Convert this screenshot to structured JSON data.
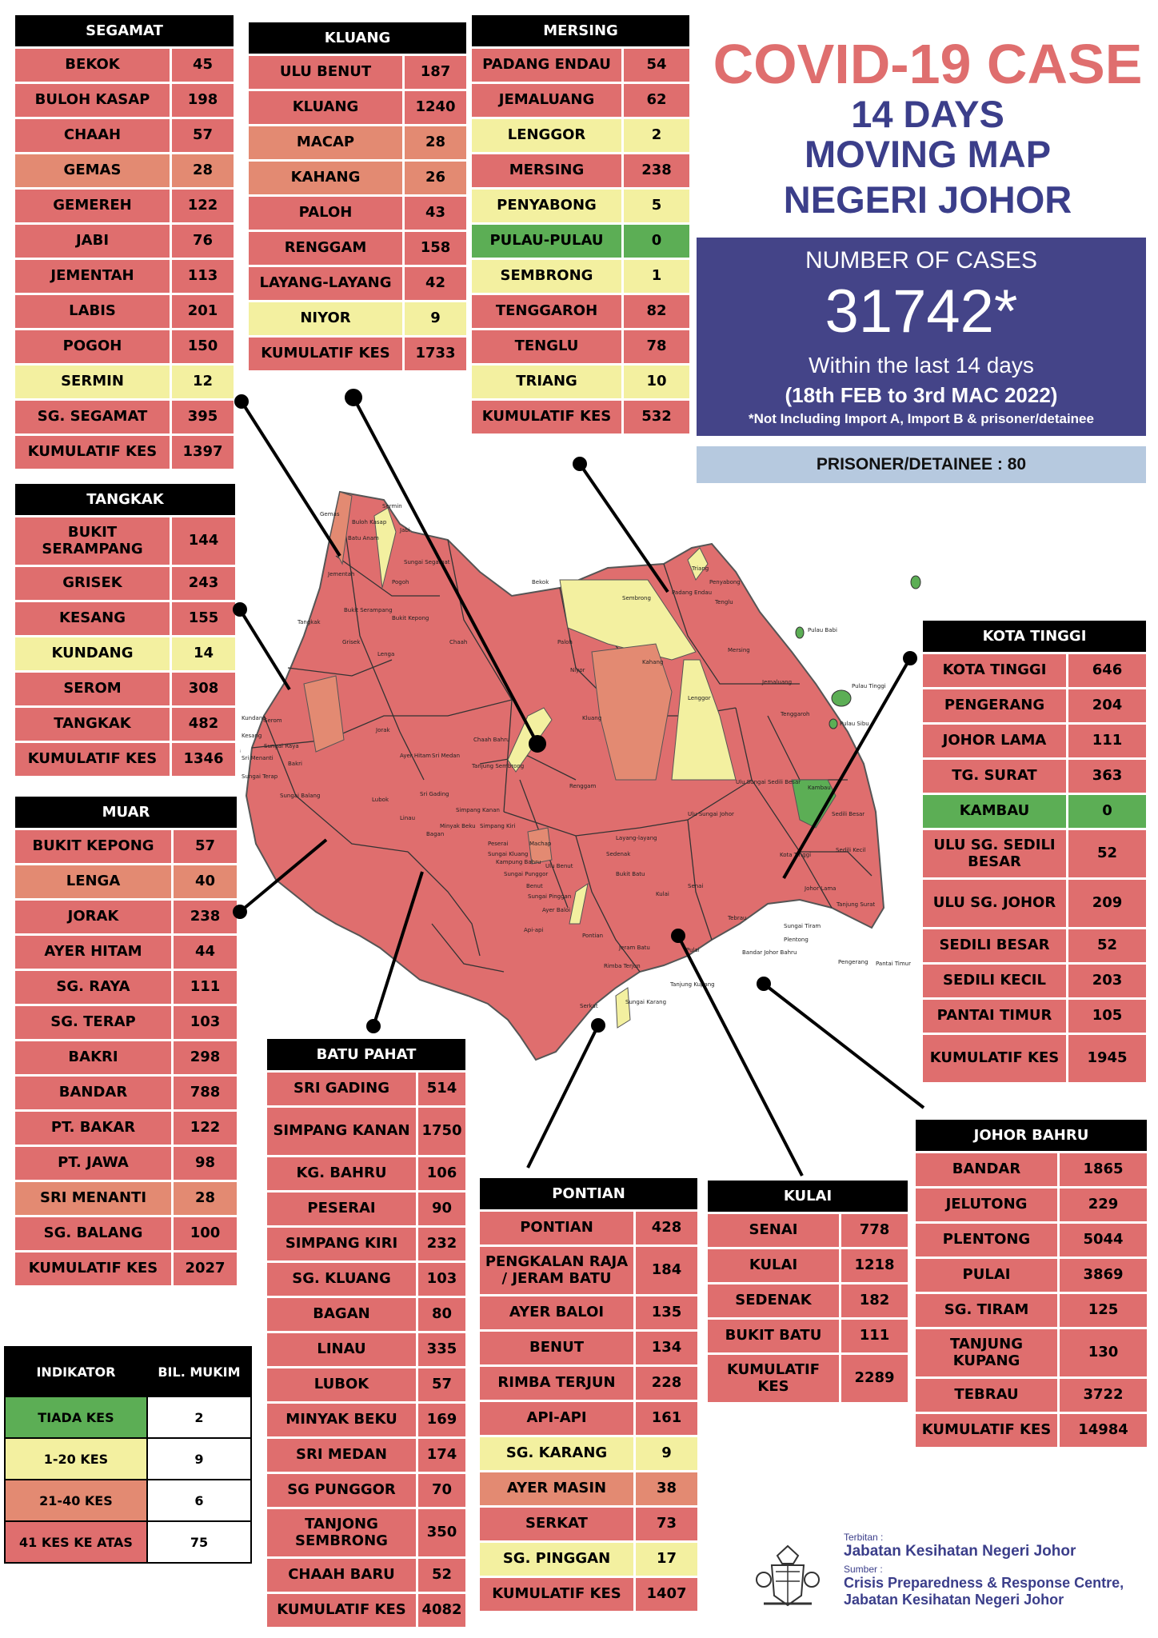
{
  "title": {
    "line1": "COVID-19 CASE",
    "line2": "14 DAYS",
    "line3": "MOVING MAP",
    "line4": "NEGERI JOHOR"
  },
  "summary": {
    "label": "NUMBER OF CASES",
    "total": "31742*",
    "period_prefix": "Within the last 14 days",
    "date_range": "(18th FEB to 3rd MAC 2022)",
    "note": "*Not Including Import A, Import B & prisoner/detainee",
    "prisoner": "PRISONER/DETAINEE : 80"
  },
  "colors": {
    "red": "#df6e6e",
    "orange": "#e38a72",
    "yellow": "#f3f0a0",
    "green": "#5cae55",
    "navy": "#444488"
  },
  "districts": [
    {
      "id": "segamat",
      "name": "SEGAMAT",
      "rows": [
        {
          "name": "BEKOK",
          "value": "45",
          "level": "red"
        },
        {
          "name": "BULOH KASAP",
          "value": "198",
          "level": "red"
        },
        {
          "name": "CHAAH",
          "value": "57",
          "level": "red"
        },
        {
          "name": "GEMAS",
          "value": "28",
          "level": "orange"
        },
        {
          "name": "GEMEREH",
          "value": "122",
          "level": "red"
        },
        {
          "name": "JABI",
          "value": "76",
          "level": "red"
        },
        {
          "name": "JEMENTAH",
          "value": "113",
          "level": "red"
        },
        {
          "name": "LABIS",
          "value": "201",
          "level": "red"
        },
        {
          "name": "POGOH",
          "value": "150",
          "level": "red"
        },
        {
          "name": "SERMIN",
          "value": "12",
          "level": "yellow"
        },
        {
          "name": "SG. SEGAMAT",
          "value": "395",
          "level": "red"
        }
      ],
      "total": {
        "name": "KUMULATIF KES",
        "value": "1397"
      }
    },
    {
      "id": "kluang",
      "name": "KLUANG",
      "rows": [
        {
          "name": "ULU BENUT",
          "value": "187",
          "level": "red"
        },
        {
          "name": "KLUANG",
          "value": "1240",
          "level": "red"
        },
        {
          "name": "MACAP",
          "value": "28",
          "level": "orange"
        },
        {
          "name": "KAHANG",
          "value": "26",
          "level": "orange"
        },
        {
          "name": "PALOH",
          "value": "43",
          "level": "red"
        },
        {
          "name": "RENGGAM",
          "value": "158",
          "level": "red"
        },
        {
          "name": "LAYANG-LAYANG",
          "value": "42",
          "level": "red"
        },
        {
          "name": "NIYOR",
          "value": "9",
          "level": "yellow"
        }
      ],
      "total": {
        "name": "KUMULATIF KES",
        "value": "1733"
      }
    },
    {
      "id": "mersing",
      "name": "MERSING",
      "rows": [
        {
          "name": "PADANG ENDAU",
          "value": "54",
          "level": "red"
        },
        {
          "name": "JEMALUANG",
          "value": "62",
          "level": "red"
        },
        {
          "name": "LENGGOR",
          "value": "2",
          "level": "yellow"
        },
        {
          "name": "MERSING",
          "value": "238",
          "level": "red"
        },
        {
          "name": "PENYABONG",
          "value": "5",
          "level": "yellow"
        },
        {
          "name": "PULAU-PULAU",
          "value": "0",
          "level": "green"
        },
        {
          "name": "SEMBRONG",
          "value": "1",
          "level": "yellow"
        },
        {
          "name": "TENGGAROH",
          "value": "82",
          "level": "red"
        },
        {
          "name": "TENGLU",
          "value": "78",
          "level": "red"
        },
        {
          "name": "TRIANG",
          "value": "10",
          "level": "yellow"
        }
      ],
      "total": {
        "name": "KUMULATIF KES",
        "value": "532"
      }
    },
    {
      "id": "tangkak",
      "name": "TANGKAK",
      "rows": [
        {
          "name": "BUKIT SERAMPANG",
          "value": "144",
          "level": "red",
          "tall": true
        },
        {
          "name": "GRISEK",
          "value": "243",
          "level": "red"
        },
        {
          "name": "KESANG",
          "value": "155",
          "level": "red"
        },
        {
          "name": "KUNDANG",
          "value": "14",
          "level": "yellow"
        },
        {
          "name": "SEROM",
          "value": "308",
          "level": "red"
        },
        {
          "name": "TANGKAK",
          "value": "482",
          "level": "red"
        }
      ],
      "total": {
        "name": "KUMULATIF KES",
        "value": "1346"
      }
    },
    {
      "id": "muar",
      "name": "MUAR",
      "rows": [
        {
          "name": "BUKIT KEPONG",
          "value": "57",
          "level": "red"
        },
        {
          "name": "LENGA",
          "value": "40",
          "level": "orange"
        },
        {
          "name": "JORAK",
          "value": "238",
          "level": "red"
        },
        {
          "name": "AYER HITAM",
          "value": "44",
          "level": "red"
        },
        {
          "name": "SG. RAYA",
          "value": "111",
          "level": "red"
        },
        {
          "name": "SG. TERAP",
          "value": "103",
          "level": "red"
        },
        {
          "name": "BAKRI",
          "value": "298",
          "level": "red"
        },
        {
          "name": "BANDAR",
          "value": "788",
          "level": "red"
        },
        {
          "name": "PT. BAKAR",
          "value": "122",
          "level": "red"
        },
        {
          "name": "PT. JAWA",
          "value": "98",
          "level": "red"
        },
        {
          "name": "SRI MENANTI",
          "value": "28",
          "level": "orange"
        },
        {
          "name": "SG. BALANG",
          "value": "100",
          "level": "red"
        }
      ],
      "total": {
        "name": "KUMULATIF KES",
        "value": "2027"
      }
    },
    {
      "id": "kota_tinggi",
      "name": "KOTA TINGGI",
      "rows": [
        {
          "name": "KOTA TINGGI",
          "value": "646",
          "level": "red"
        },
        {
          "name": "PENGERANG",
          "value": "204",
          "level": "red"
        },
        {
          "name": "JOHOR LAMA",
          "value": "111",
          "level": "red"
        },
        {
          "name": "TG. SURAT",
          "value": "363",
          "level": "red"
        },
        {
          "name": "KAMBAU",
          "value": "0",
          "level": "green"
        },
        {
          "name": "ULU SG. SEDILI BESAR",
          "value": "52",
          "level": "red",
          "tall": true
        },
        {
          "name": "ULU SG. JOHOR",
          "value": "209",
          "level": "red",
          "tall": true
        },
        {
          "name": "SEDILI BESAR",
          "value": "52",
          "level": "red"
        },
        {
          "name": "SEDILI KECIL",
          "value": "203",
          "level": "red"
        },
        {
          "name": "PANTAI TIMUR",
          "value": "105",
          "level": "red"
        }
      ],
      "total": {
        "name": "KUMULATIF KES",
        "value": "1945",
        "tall": true
      }
    },
    {
      "id": "batu_pahat",
      "name": "BATU PAHAT",
      "rows": [
        {
          "name": "SRI GADING",
          "value": "514",
          "level": "red"
        },
        {
          "name": "SIMPANG KANAN",
          "value": "1750",
          "level": "red",
          "tall": true
        },
        {
          "name": "KG. BAHRU",
          "value": "106",
          "level": "red"
        },
        {
          "name": "PESERAI",
          "value": "90",
          "level": "red"
        },
        {
          "name": "SIMPANG KIRI",
          "value": "232",
          "level": "red"
        },
        {
          "name": "SG. KLUANG",
          "value": "103",
          "level": "red"
        },
        {
          "name": "BAGAN",
          "value": "80",
          "level": "red"
        },
        {
          "name": "LINAU",
          "value": "335",
          "level": "red"
        },
        {
          "name": "LUBOK",
          "value": "57",
          "level": "red"
        },
        {
          "name": "MINYAK BEKU",
          "value": "169",
          "level": "red"
        },
        {
          "name": "SRI MEDAN",
          "value": "174",
          "level": "red"
        },
        {
          "name": "SG PUNGGOR",
          "value": "70",
          "level": "red"
        },
        {
          "name": "TANJONG SEMBRONG",
          "value": "350",
          "level": "red",
          "tall": true
        },
        {
          "name": "CHAAH BARU",
          "value": "52",
          "level": "red"
        }
      ],
      "total": {
        "name": "KUMULATIF KES",
        "value": "4082"
      }
    },
    {
      "id": "pontian",
      "name": "PONTIAN",
      "rows": [
        {
          "name": "PONTIAN",
          "value": "428",
          "level": "red"
        },
        {
          "name": "PENGKALAN RAJA / JERAM BATU",
          "value": "184",
          "level": "red",
          "tall": true
        },
        {
          "name": "AYER BALOI",
          "value": "135",
          "level": "red"
        },
        {
          "name": "BENUT",
          "value": "134",
          "level": "red"
        },
        {
          "name": "RIMBA TERJUN",
          "value": "228",
          "level": "red"
        },
        {
          "name": "API-API",
          "value": "161",
          "level": "red"
        },
        {
          "name": "SG. KARANG",
          "value": "9",
          "level": "yellow"
        },
        {
          "name": "AYER MASIN",
          "value": "38",
          "level": "orange"
        },
        {
          "name": "SERKAT",
          "value": "73",
          "level": "red"
        },
        {
          "name": "SG. PINGGAN",
          "value": "17",
          "level": "yellow"
        }
      ],
      "total": {
        "name": "KUMULATIF KES",
        "value": "1407"
      }
    },
    {
      "id": "kulai",
      "name": "KULAI",
      "rows": [
        {
          "name": "SENAI",
          "value": "778",
          "level": "red"
        },
        {
          "name": "KULAI",
          "value": "1218",
          "level": "red"
        },
        {
          "name": "SEDENAK",
          "value": "182",
          "level": "red"
        },
        {
          "name": "BUKIT BATU",
          "value": "111",
          "level": "red"
        }
      ],
      "total": {
        "name": "KUMULATIF KES",
        "value": "2289",
        "tall": true
      }
    },
    {
      "id": "johor_bahru",
      "name": "JOHOR BAHRU",
      "rows": [
        {
          "name": "BANDAR",
          "value": "1865",
          "level": "red"
        },
        {
          "name": "JELUTONG",
          "value": "229",
          "level": "red"
        },
        {
          "name": "PLENTONG",
          "value": "5044",
          "level": "red"
        },
        {
          "name": "PULAI",
          "value": "3869",
          "level": "red"
        },
        {
          "name": "SG. TIRAM",
          "value": "125",
          "level": "red"
        },
        {
          "name": "TANJUNG KUPANG",
          "value": "130",
          "level": "red",
          "tall": true
        },
        {
          "name": "TEBRAU",
          "value": "3722",
          "level": "red"
        }
      ],
      "total": {
        "name": "KUMULATIF KES",
        "value": "14984"
      }
    }
  ],
  "legend": {
    "headers": [
      "INDIKATOR",
      "BIL. MUKIM"
    ],
    "rows": [
      {
        "label": "TIADA KES",
        "count": "2",
        "level": "green"
      },
      {
        "label": "1-20 KES",
        "count": "9",
        "level": "yellow"
      },
      {
        "label": "21-40 KES",
        "count": "6",
        "level": "orange"
      },
      {
        "label": "41 KES KE ATAS",
        "count": "75",
        "level": "red"
      }
    ]
  },
  "map_labels": [
    "Gemas",
    "Sermin",
    "Jabi",
    "Buloh Kasap",
    "Batu Anam",
    "Sungai Segamat",
    "Jementah",
    "Pogoh",
    "Bukit Serampang",
    "Tangkak",
    "Bukit Kepong",
    "Grisek",
    "Lenga",
    "Chaah",
    "Bekok",
    "Sembrong",
    "Triang",
    "Penyabong",
    "Padang Endau",
    "Tenglu",
    "Paloh",
    "Niyor",
    "Kahang",
    "Lenggor",
    "Mersing",
    "Jemaluang",
    "Tenggaroh",
    "Pulau Babi",
    "Pulau Tinggi",
    "Pulau Sibu",
    "Kluang",
    "Renggam",
    "Ulu Sungai Sedili Besar",
    "Kambau",
    "Sedili Besar",
    "Sedili Kecil",
    "Kota Tinggi",
    "Ulu Sungai Johor",
    "Johor Lama",
    "Tanjung Surat",
    "Pengerang",
    "Pantai Timur",
    "Sungai Tiram",
    "Plentong",
    "Tebrau",
    "Bandar Johor Bahru",
    "Pulai",
    "Tanjung Kupang",
    "Kulai",
    "Sedenak",
    "Senai",
    "Bukit Batu",
    "Layang-layang",
    "Machap",
    "Ulu Benut",
    "Benut",
    "Sungai Pinggan",
    "Ayer Baloi",
    "Api-api",
    "Pontian",
    "Serkat",
    "Sungai Karang",
    "Rimba Terjun",
    "Jeram Batu",
    "Chaah Bahru",
    "Tanjung Sembrong",
    "Sri Medan",
    "Ayer Hitam",
    "Jorak",
    "Kesang",
    "Kundang",
    "Serom",
    "Bakri",
    "Sungai Raya",
    "Sri Menanti",
    "Sungai Terap",
    "Sungai Balang",
    "Minyak Beku",
    "Simpang Kanan",
    "Sri Gading",
    "Lubok",
    "Linau",
    "Bagan",
    "Simpang Kiri",
    "Peserai",
    "Sungai Kluang",
    "Sungai Punggor",
    "Kampung Bahru"
  ],
  "footer": {
    "published_label": "Terbitan :",
    "publisher": "Jabatan Kesihatan Negeri Johor",
    "source_label": "Sumber :",
    "source_line1": "Crisis Preparedness & Response Centre,",
    "source_line2": "Jabatan Kesihatan Negeri Johor"
  }
}
